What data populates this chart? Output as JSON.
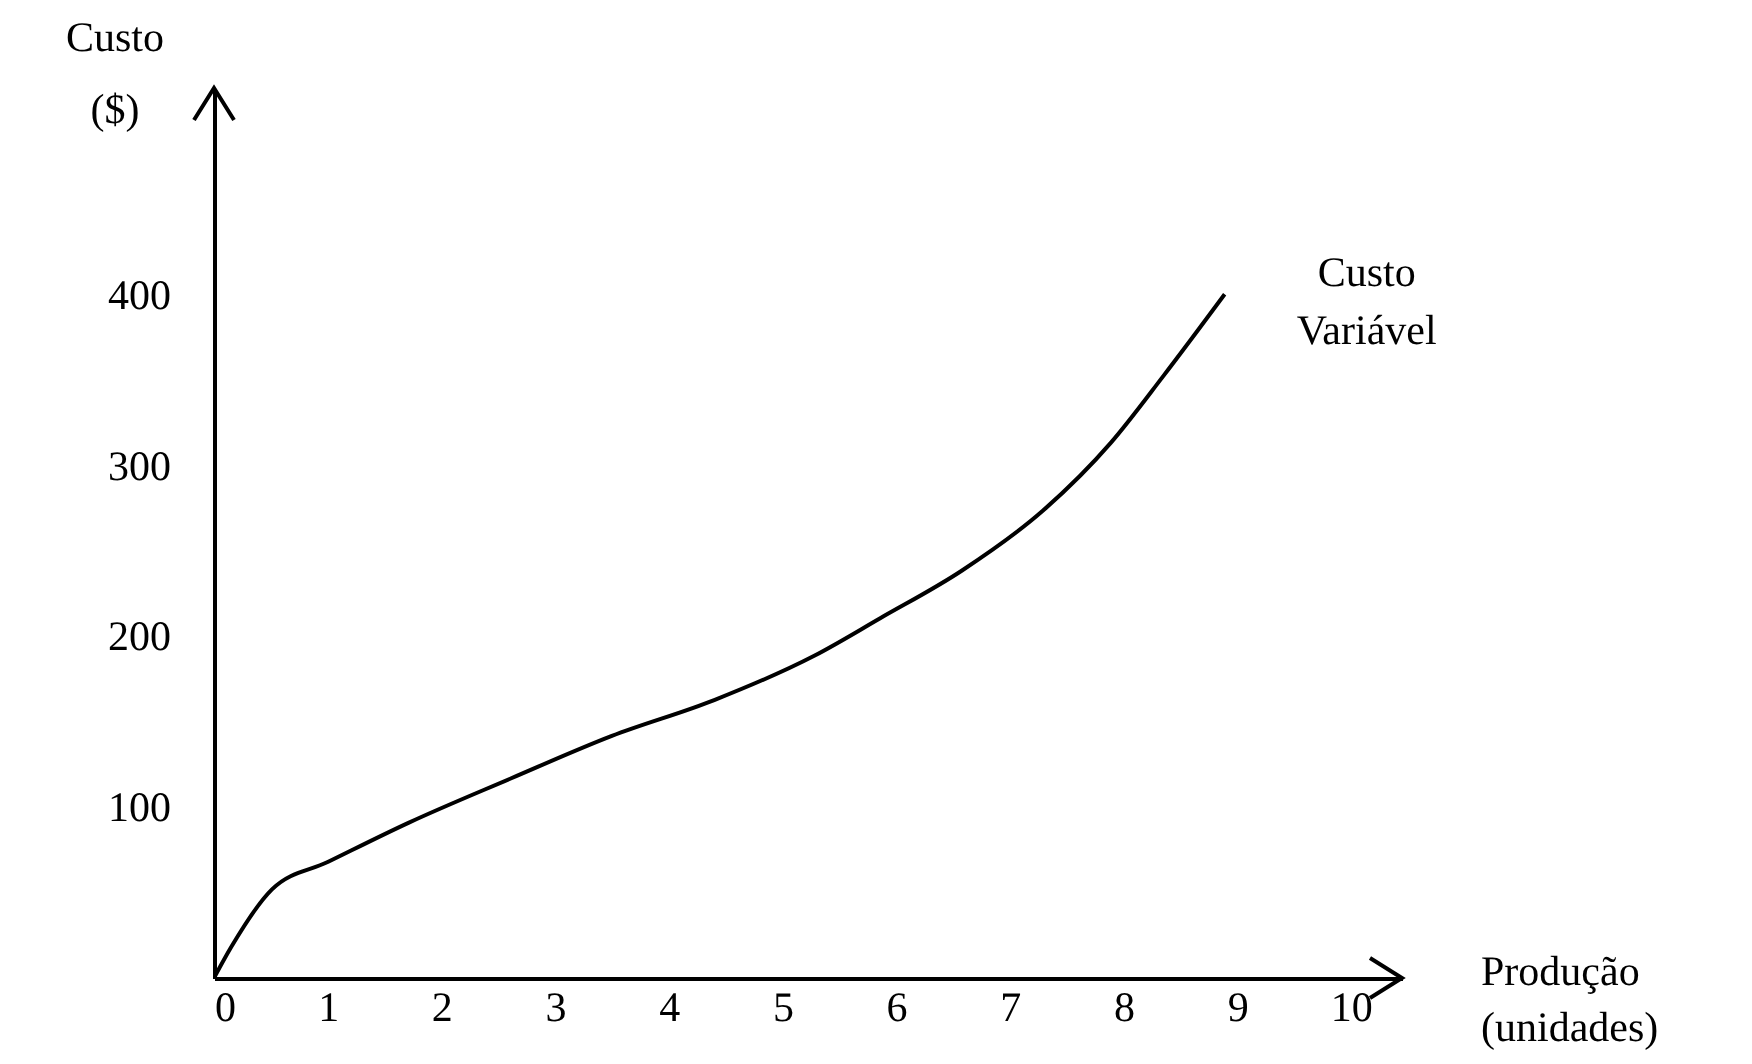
{
  "chart_data": {
    "type": "line",
    "xlabel": "Produção (unidades)",
    "ylabel": "Custo ($)",
    "x": [
      0,
      0.15,
      0.51,
      1.0,
      1.71,
      2.61,
      3.5,
      4.4,
      5.28,
      5.86,
      6.58,
      7.29,
      7.89,
      8.35,
      8.89
    ],
    "series": [
      {
        "name": "Custo Variável",
        "color": "#000000",
        "values": [
          0,
          18,
          52,
          68,
          91,
          117,
          142,
          163,
          189,
          211,
          239,
          274,
          314,
          353,
          401
        ]
      }
    ],
    "xlim": [
      0,
      10.45
    ],
    "ylim": [
      0,
      522
    ],
    "xticks": [
      0,
      1,
      2,
      3,
      4,
      5,
      6,
      7,
      8,
      9,
      10
    ],
    "yticks": [
      100,
      200,
      300,
      400
    ],
    "grid": false,
    "marker": "none",
    "line_style": "solid"
  }
}
